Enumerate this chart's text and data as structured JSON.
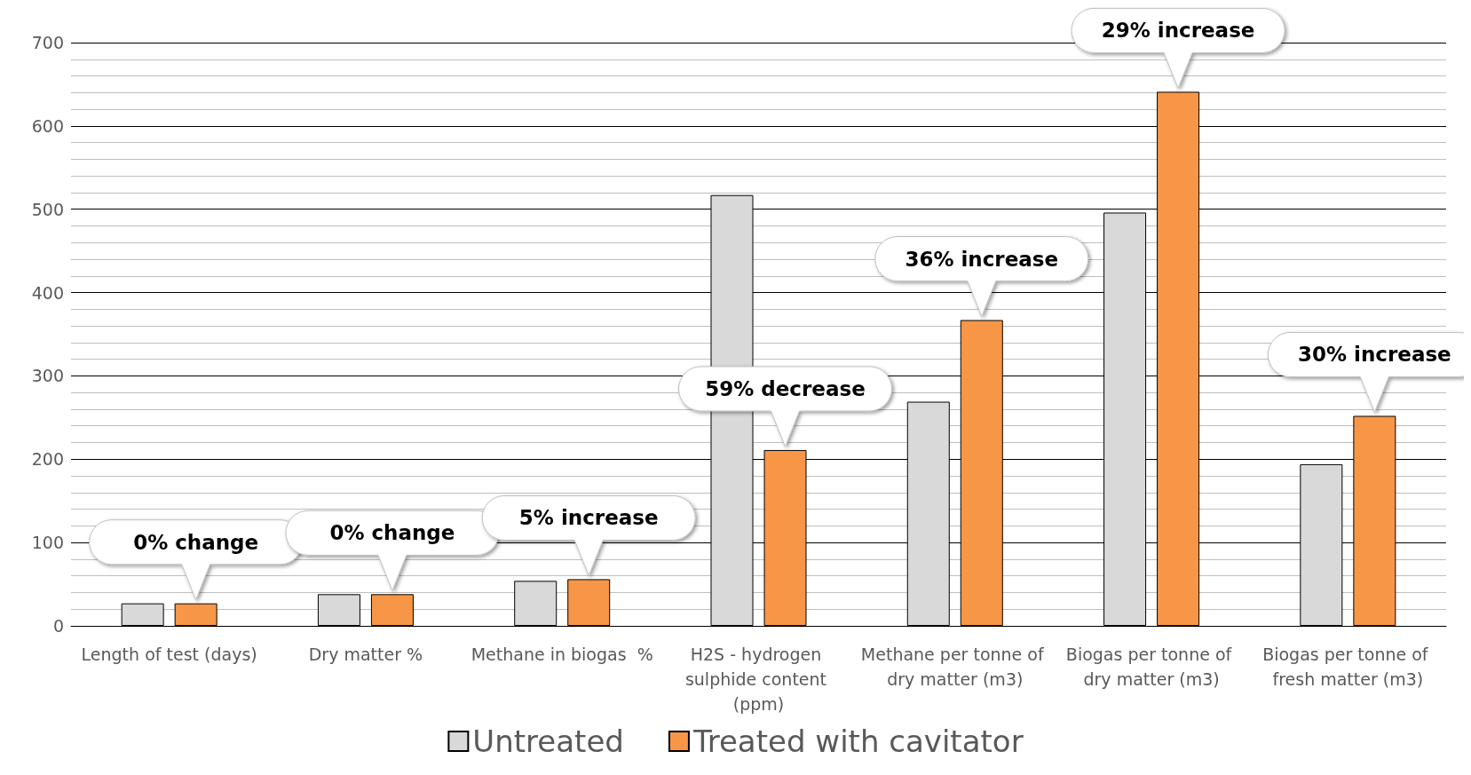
{
  "chart_data": {
    "type": "bar",
    "categories": [
      "Length of test (days)",
      "Dry matter %",
      "Methane in biogas  %",
      "H2S - hydrogen sulphide content (ppm)",
      "Methane per tonne of dry matter (m3)",
      "Biogas per tonne of dry matter (m3)",
      "Biogas per tonne of fresh matter (m3)"
    ],
    "series": [
      {
        "name": "Untreated",
        "color": "#d9d9d9",
        "values": [
          27,
          38,
          54,
          517,
          269,
          496,
          194
        ]
      },
      {
        "name": "Treated with cavitator",
        "color": "#f79646",
        "values": [
          27,
          38,
          56,
          211,
          367,
          641,
          252
        ]
      }
    ],
    "ylim": [
      0,
      700
    ],
    "yticks": [
      0,
      {
        "value": 20,
        "label": null
      },
      {
        "value": 40,
        "label": null
      },
      {
        "value": 60,
        "label": null
      },
      {
        "value": 80,
        "label": null
      },
      100,
      {
        "value": 120,
        "label": null
      },
      {
        "value": 140,
        "label": null
      },
      {
        "value": 160,
        "label": null
      },
      {
        "value": 180,
        "label": null
      },
      200,
      {
        "value": 220,
        "label": null
      },
      {
        "value": 240,
        "label": null
      },
      {
        "value": 260,
        "label": null
      },
      {
        "value": 280,
        "label": null
      },
      300,
      {
        "value": 320,
        "label": null
      },
      {
        "value": 340,
        "label": null
      },
      {
        "value": 360,
        "label": null
      },
      {
        "value": 380,
        "label": null
      },
      400,
      {
        "value": 420,
        "label": null
      },
      {
        "value": 440,
        "label": null
      },
      {
        "value": 460,
        "label": null
      },
      {
        "value": 480,
        "label": null
      },
      500,
      {
        "value": 520,
        "label": null
      },
      {
        "value": 540,
        "label": null
      },
      {
        "value": 560,
        "label": null
      },
      {
        "value": 580,
        "label": null
      },
      600,
      {
        "value": 620,
        "label": null
      },
      {
        "value": 640,
        "label": null
      },
      {
        "value": 660,
        "label": null
      },
      {
        "value": 680,
        "label": null
      },
      700
    ],
    "grid": "y",
    "legend": "bottom",
    "annotations": [
      "0% change",
      "0% change",
      "5% increase",
      "59% decrease",
      "36% increase",
      "29% increase",
      "30% increase"
    ]
  }
}
